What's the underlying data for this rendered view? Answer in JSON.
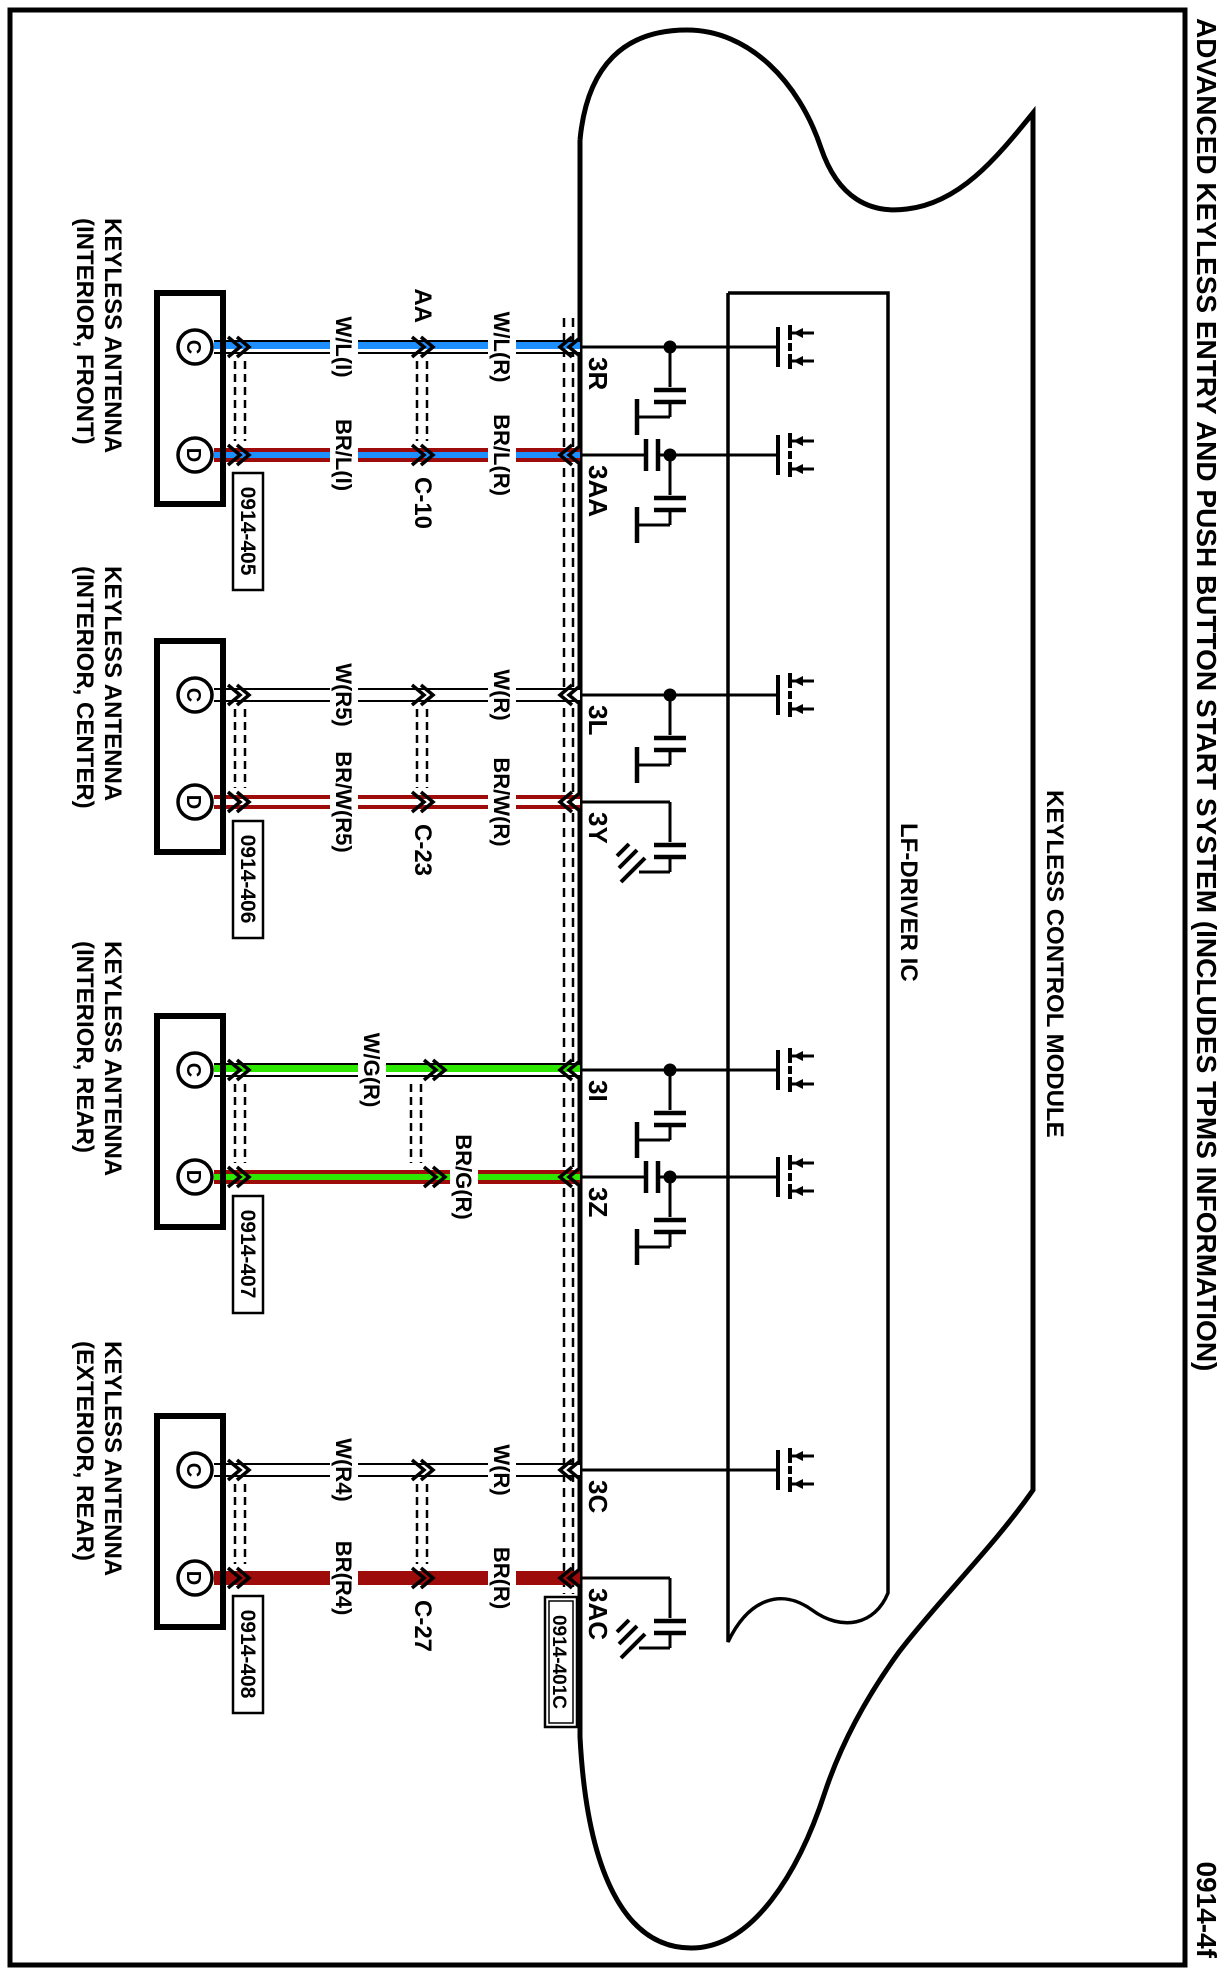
{
  "page": {
    "title": "ADVANCED KEYLESS ENTRY AND PUSH BUTTON START SYSTEM (INCLUDES TPMS INFORMATION)",
    "figure_id": "0914-4f"
  },
  "module": {
    "name": "KEYLESS CONTROL MODULE",
    "ic": "LF-DRIVER IC",
    "shield_connector": "0914-401C",
    "pins": [
      "3R",
      "3AA",
      "3L",
      "3Y",
      "3I",
      "3Z",
      "3C",
      "3AC"
    ]
  },
  "antennas": [
    {
      "line1": "KEYLESS ANTENNA",
      "line2": "(INTERIOR, FRONT)",
      "tag": "0914-405",
      "pins": [
        "C",
        "D"
      ],
      "connector_letter": "AA",
      "connector_number": "C-10",
      "wires": [
        {
          "seg1": "W/L(I)",
          "seg2": "W/L(R)",
          "module_pin": "3R"
        },
        {
          "seg1": "BR/L(I)",
          "seg2": "BR/L(R)",
          "module_pin": "3AA"
        }
      ]
    },
    {
      "line1": "KEYLESS ANTENNA",
      "line2": "(INTERIOR, CENTER)",
      "tag": "0914-406",
      "pins": [
        "C",
        "D"
      ],
      "connector_number": "C-23",
      "wires": [
        {
          "seg1": "W(R5)",
          "seg2": "W(R)",
          "module_pin": "3L"
        },
        {
          "seg1": "BR/W(R5)",
          "seg2": "BR/W(R)",
          "module_pin": "3Y"
        }
      ]
    },
    {
      "line1": "KEYLESS ANTENNA",
      "line2": "(INTERIOR, REAR)",
      "tag": "0914-407",
      "pins": [
        "C",
        "D"
      ],
      "wires": [
        {
          "seg2": "W/G(R)",
          "module_pin": "3I"
        },
        {
          "seg2": "BR/G(R)",
          "module_pin": "3Z"
        }
      ]
    },
    {
      "line1": "KEYLESS ANTENNA",
      "line2": "(EXTERIOR, REAR)",
      "tag": "0914-408",
      "pins": [
        "C",
        "D"
      ],
      "connector_number": "C-27",
      "wires": [
        {
          "seg1": "W(R4)",
          "seg2": "W(R)",
          "module_pin": "3C"
        },
        {
          "seg1": "BR(R4)",
          "seg2": "BR(R)",
          "module_pin": "3AC"
        }
      ]
    }
  ],
  "colors": {
    "wire_blue": "#1E8FFF",
    "wire_green": "#2FE800",
    "wire_brown": "#9E0B0B",
    "outline": "#000000",
    "background": "#FFFFFF"
  }
}
